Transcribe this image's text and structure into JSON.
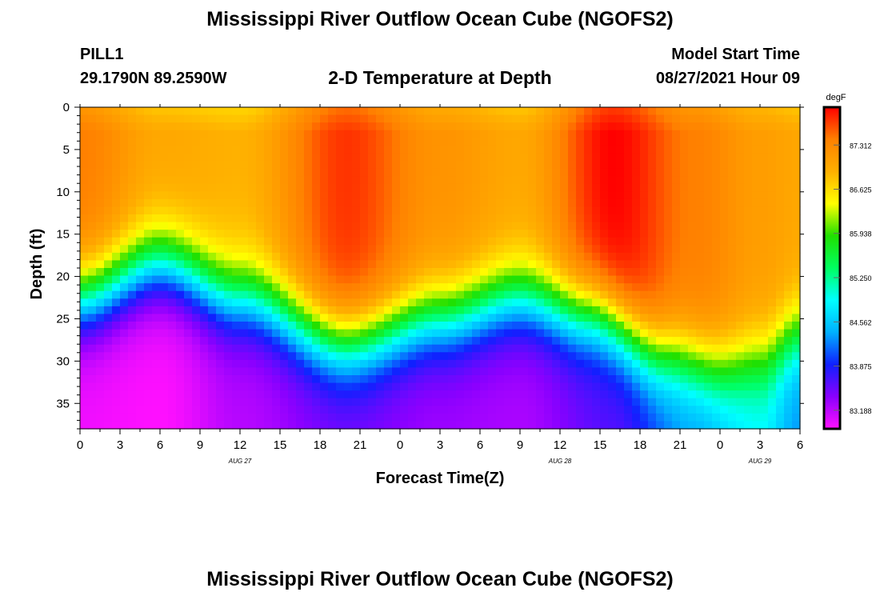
{
  "header": {
    "title": "Mississippi River Outflow Ocean Cube (NGOFS2)",
    "station": "PILL1",
    "coords": "29.1790N  89.2590W",
    "plot_title": "2-D Temperature at Depth",
    "model_label": "Model Start Time",
    "model_time": "08/27/2021 Hour 09"
  },
  "footer": {
    "title": "Mississippi River Outflow Ocean Cube (NGOFS2)"
  },
  "chart_data": {
    "type": "heatmap",
    "title": "2-D Temperature at Depth",
    "xlabel": "Forecast Time(Z)",
    "ylabel": "Depth (ft)",
    "x_hours_range": [
      0,
      54
    ],
    "ylim": [
      0,
      38
    ],
    "y_inverted": true,
    "x_ticks": [
      "0",
      "3",
      "6",
      "9",
      "12",
      "15",
      "18",
      "21",
      "0",
      "3",
      "6",
      "9",
      "12",
      "15",
      "18",
      "21",
      "0",
      "3",
      "6"
    ],
    "x_tick_step_hours": 3,
    "y_ticks": [
      0,
      5,
      10,
      15,
      20,
      25,
      30,
      35
    ],
    "date_labels": [
      {
        "hour": 12,
        "text": "AUG 27"
      },
      {
        "hour": 36,
        "text": "AUG 28"
      },
      {
        "hour": 51,
        "text": "AUG 29"
      }
    ],
    "colorbar": {
      "unit": "degF",
      "min": 82.9,
      "max": 87.9,
      "ticks": [
        "87.312",
        "86.625",
        "85.938",
        "85.250",
        "84.562",
        "83.875",
        "83.188"
      ],
      "colors": [
        "#ff10ff",
        "#8a00ff",
        "#1020ff",
        "#00b0ff",
        "#00ffff",
        "#00ff60",
        "#20e000",
        "#ffff00",
        "#ffb000",
        "#ff8000",
        "#ff0000"
      ]
    },
    "surface_temp_samples": {
      "hours": [
        0,
        6,
        12,
        20,
        27,
        33,
        40,
        46,
        51,
        54
      ],
      "temp": [
        87.4,
        87.0,
        86.9,
        87.7,
        87.2,
        87.0,
        87.9,
        87.4,
        87.1,
        87.0
      ]
    },
    "thermocline_samples": {
      "hours": [
        0,
        6,
        12,
        20,
        27,
        33,
        38,
        44,
        48,
        51,
        54
      ],
      "mid_depth_ft": [
        22.5,
        18.5,
        22.5,
        28.0,
        25.0,
        22.5,
        24.5,
        29.5,
        31.0,
        30.0,
        27.0
      ]
    },
    "bottom_temp_samples": {
      "hours": [
        0,
        6,
        12,
        20,
        27,
        33,
        40,
        46,
        51,
        54
      ],
      "temp": [
        82.95,
        82.9,
        83.2,
        83.45,
        83.3,
        83.25,
        83.6,
        84.3,
        84.8,
        84.3
      ]
    }
  }
}
